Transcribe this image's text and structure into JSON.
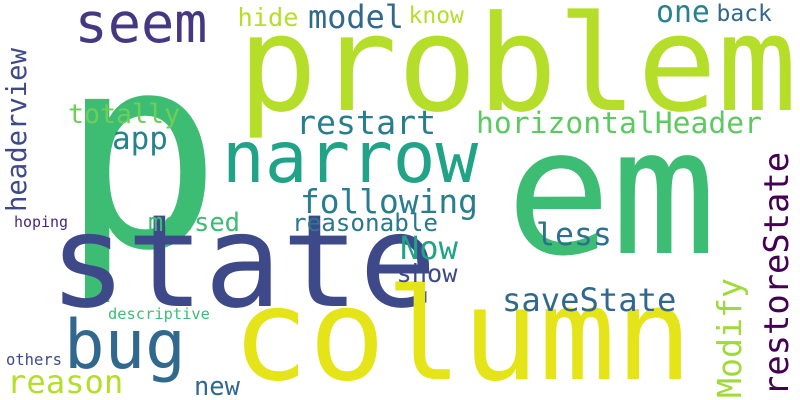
{
  "words": [
    {
      "text": "p",
      "color": "#3dbc74"
    },
    {
      "text": "problem",
      "color": "#b5de2b"
    },
    {
      "text": "em",
      "color": "#3dbc74"
    },
    {
      "text": "state",
      "color": "#3e4989"
    },
    {
      "text": "column",
      "color": "#e5e419"
    },
    {
      "text": "narrow",
      "color": "#20a386"
    },
    {
      "text": "seem",
      "color": "#453781"
    },
    {
      "text": "bug",
      "color": "#31688e"
    },
    {
      "text": "following",
      "color": "#287d8e"
    },
    {
      "text": "horizontalHeader",
      "color": "#5ec962"
    },
    {
      "text": "restart",
      "color": "#287d8e"
    },
    {
      "text": "app",
      "color": "#26828e"
    },
    {
      "text": "totally",
      "color": "#6ece58"
    },
    {
      "text": "model",
      "color": "#31688e"
    },
    {
      "text": "hide",
      "color": "#b5de2b"
    },
    {
      "text": "know",
      "color": "#b5de2b"
    },
    {
      "text": "one",
      "color": "#26828e"
    },
    {
      "text": "back",
      "color": "#31688e"
    },
    {
      "text": "headerview",
      "color": "#3e4989"
    },
    {
      "text": "messed",
      "color": "#3dbc74"
    },
    {
      "text": "reasonable",
      "color": "#2a788e"
    },
    {
      "text": "hoping",
      "color": "#482878"
    },
    {
      "text": "Now",
      "color": "#20a386"
    },
    {
      "text": "less",
      "color": "#2c728e"
    },
    {
      "text": "show",
      "color": "#3e4989"
    },
    {
      "text": "saveState",
      "color": "#31688e"
    },
    {
      "text": "Modify",
      "color": "#a0da39"
    },
    {
      "text": "restoreState",
      "color": "#440154"
    },
    {
      "text": "descriptive",
      "color": "#3dbc74"
    },
    {
      "text": "reason",
      "color": "#b5de2b"
    },
    {
      "text": "new",
      "color": "#31688e"
    },
    {
      "text": "others",
      "color": "#3e4989"
    }
  ]
}
